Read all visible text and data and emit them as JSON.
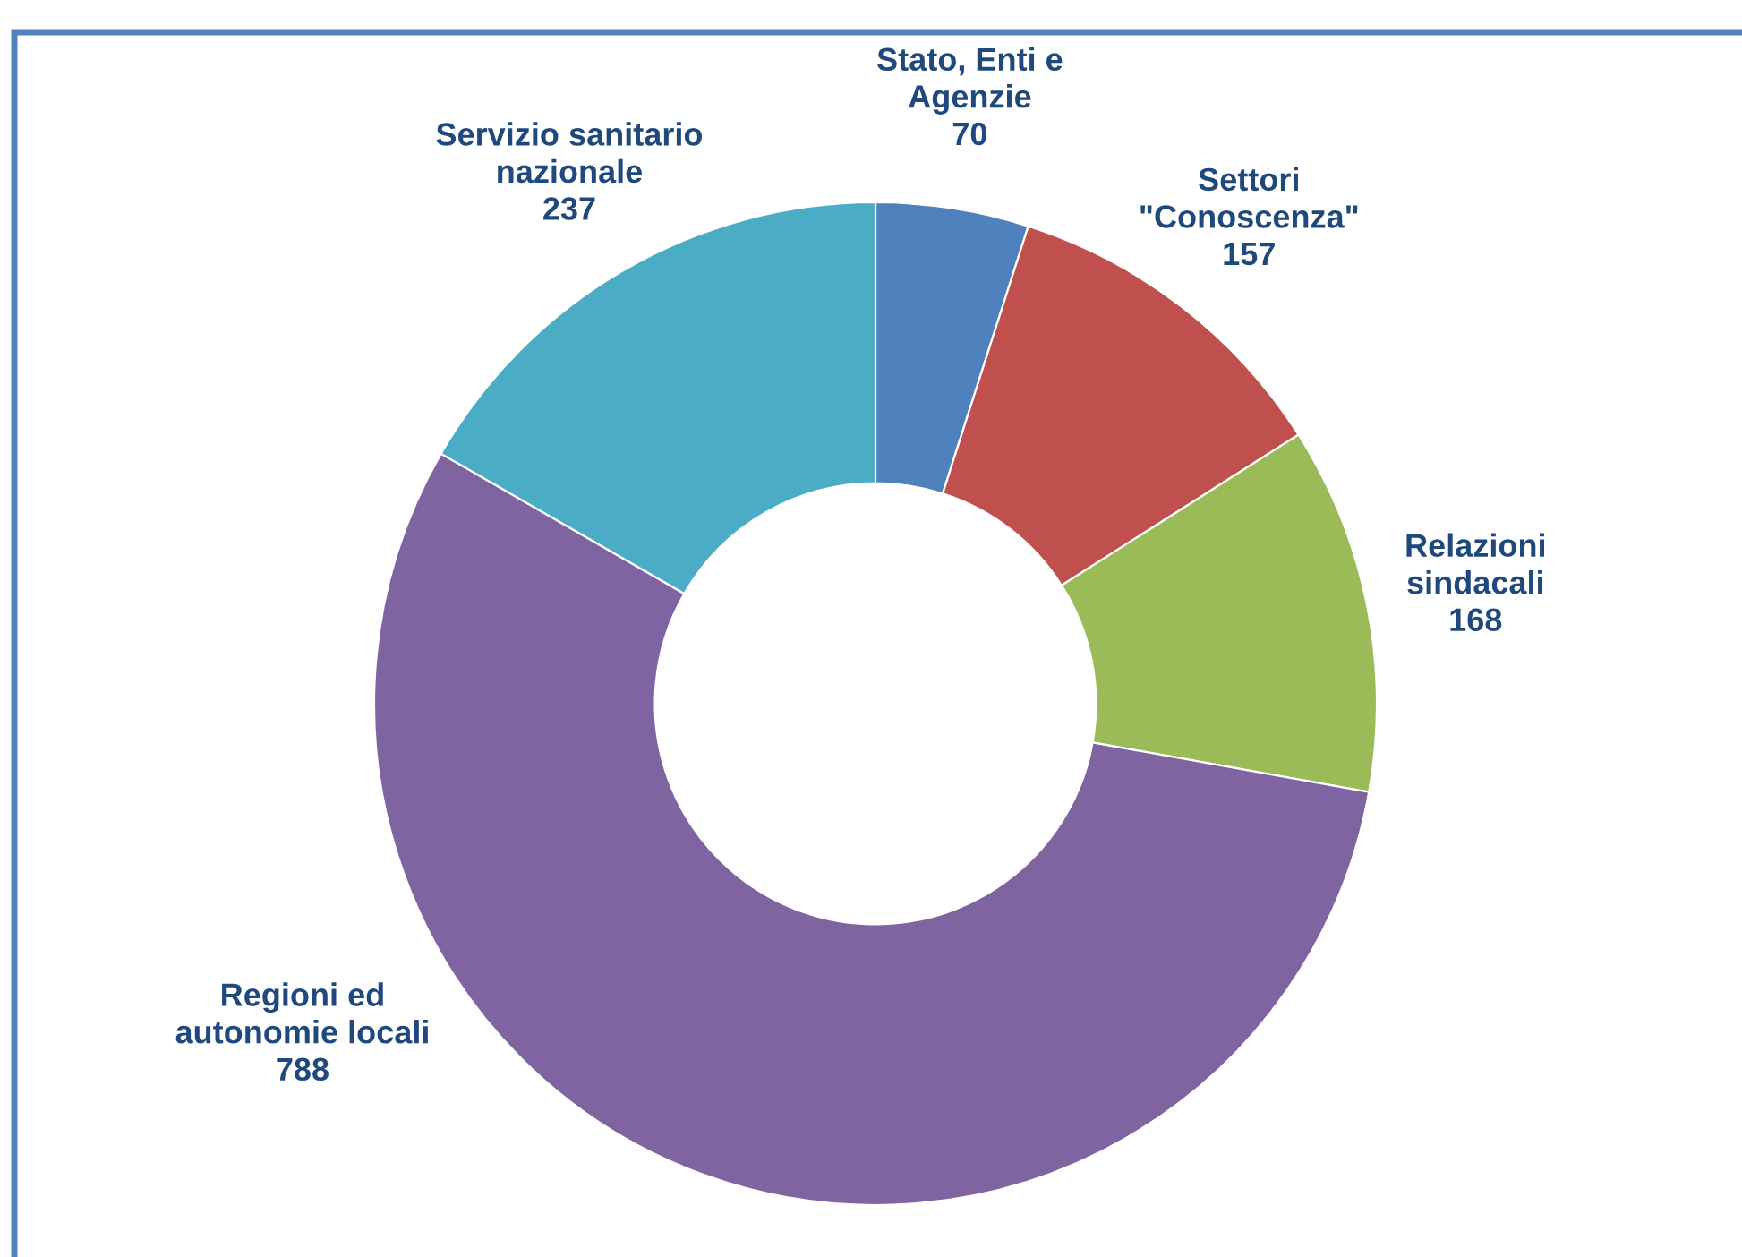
{
  "chart_data": {
    "type": "donut",
    "categories": [
      "Stato, Enti e\nAgenzie",
      "Settori\n\"Conoscenza\"",
      "Relazioni\nsindacali",
      "Regioni ed\nautonomie locali",
      "Servizio sanitario\nnazionale"
    ],
    "values": [
      70,
      157,
      168,
      788,
      237
    ],
    "colors": [
      "#4f81bd",
      "#c0504d",
      "#9bbb59",
      "#8064a2",
      "#4bacc6"
    ],
    "data_labels": true
  }
}
